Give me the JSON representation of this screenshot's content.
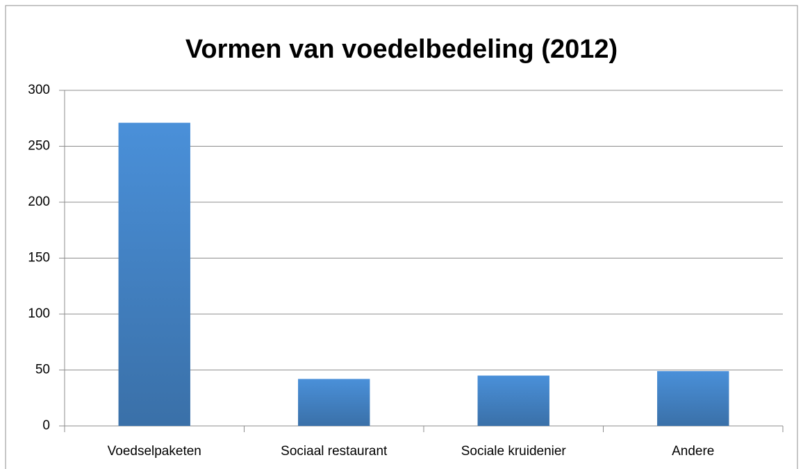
{
  "chart_data": {
    "type": "bar",
    "title": "Vormen van voedelbedeling (2012)",
    "categories": [
      "Voedselpaketen",
      "Sociaal restaurant",
      "Sociale kruidenier",
      "Andere"
    ],
    "values": [
      271,
      42,
      45,
      49
    ],
    "color": "#4a90d9",
    "ylim": [
      0,
      300
    ],
    "yticks": [
      0,
      50,
      100,
      150,
      200,
      250,
      300
    ],
    "grid": true
  }
}
